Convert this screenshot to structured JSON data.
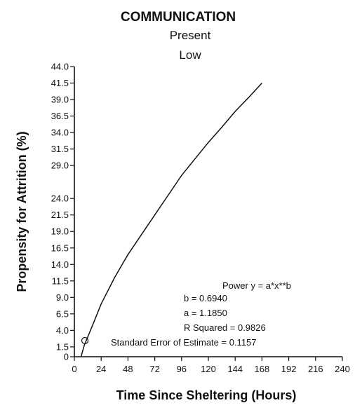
{
  "chart_data": {
    "type": "line",
    "title": "COMMUNICATION",
    "subtitle_lines": [
      "Present",
      "Low"
    ],
    "xlabel": "Time Since Sheltering (Hours)",
    "ylabel": "Propensity for Attrition (%)",
    "xlim": [
      0,
      240
    ],
    "ylim": [
      0,
      44
    ],
    "x_ticks": [
      0,
      24,
      48,
      72,
      96,
      120,
      144,
      168,
      192,
      216,
      240
    ],
    "x_tick_labels": [
      "0",
      "24",
      "48",
      "72",
      "96",
      "120",
      "144",
      "168",
      "192",
      "216",
      "240"
    ],
    "y_ticks": [
      0,
      1.5,
      4.0,
      6.5,
      9.0,
      11.5,
      14.0,
      16.5,
      19.0,
      21.5,
      24.0,
      29.0,
      31.5,
      34.0,
      36.5,
      39.0,
      41.5,
      44.0
    ],
    "y_tick_labels": [
      "0",
      "1.5",
      "4.0",
      "6.5",
      "9.0",
      "11.5",
      "14.0",
      "16.5",
      "19.0",
      "21.5",
      "24.0",
      "29.0",
      "31.5",
      "34.0",
      "36.5",
      "39.0",
      "41.5",
      "44.0"
    ],
    "grid": false,
    "series": [
      {
        "x": [
          6,
          9,
          12,
          18,
          24,
          36,
          48,
          60,
          72,
          84,
          96,
          108,
          120,
          132,
          144,
          156,
          168
        ],
        "y": [
          0.0,
          1.8,
          3.0,
          5.5,
          8.0,
          12.0,
          15.5,
          18.5,
          21.5,
          24.5,
          27.5,
          30.0,
          32.5,
          34.8,
          37.2,
          39.3,
          41.5
        ]
      }
    ],
    "annotation_lines": [
      "Power y = a*x**b",
      "b = 0.6940",
      "a = 1.1850",
      "R Squared = 0.9826",
      "Standard Error of Estimate = 0.1157"
    ],
    "line_color": "#111111"
  }
}
